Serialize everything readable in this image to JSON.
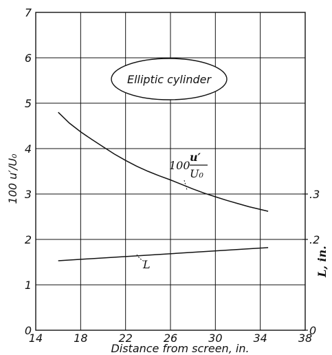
{
  "chart_data": {
    "type": "line",
    "xlabel": "Distance from screen, in.",
    "xlim": [
      14,
      38
    ],
    "x_ticks": [
      "14",
      "18",
      "22",
      "26",
      "30",
      "34",
      "38"
    ],
    "ylabel": "100 u′/U₀",
    "ylim": [
      0,
      7
    ],
    "y_ticks": [
      "0",
      "1",
      "2",
      "3",
      "4",
      "5",
      "6",
      "7"
    ],
    "y2label": "L, in.",
    "y2lim": [
      0,
      0.7
    ],
    "y2_ticks": [
      ".3",
      ".2",
      "0"
    ],
    "grid": true,
    "annotation_box": "Elliptic cylinder",
    "series": [
      {
        "name": "100 u′/U₀",
        "axis": "left",
        "x": [
          16,
          17,
          18,
          19,
          20,
          21,
          22,
          23,
          24,
          25,
          26,
          27,
          28,
          29,
          30,
          31,
          32,
          33,
          34,
          34.7
        ],
        "y": [
          4.8,
          4.56,
          4.37,
          4.2,
          4.04,
          3.88,
          3.74,
          3.61,
          3.5,
          3.4,
          3.31,
          3.21,
          3.11,
          3.02,
          2.94,
          2.86,
          2.79,
          2.72,
          2.66,
          2.62
        ]
      },
      {
        "name": "L",
        "axis": "right",
        "x": [
          16,
          34.7
        ],
        "y": [
          0.153,
          0.182
        ]
      }
    ],
    "series_labels": {
      "u_prefix": "100",
      "u_num": "u′",
      "u_den": "U₀",
      "L": "L"
    }
  }
}
